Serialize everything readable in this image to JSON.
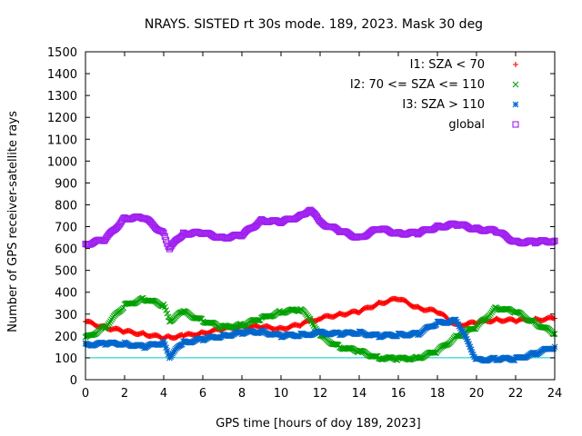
{
  "chart_data": {
    "type": "scatter",
    "title": "NRAYS. SISTED rt 30s mode. 189, 2023. Mask 30 deg",
    "xlabel": "GPS time [hours of doy 189, 2023]",
    "ylabel": "Number of GPS receiver-satellite rays",
    "xlim": [
      0,
      24
    ],
    "ylim": [
      0,
      1500
    ],
    "xticks": [
      "0",
      "2",
      "4",
      "6",
      "8",
      "10",
      "12",
      "14",
      "16",
      "18",
      "20",
      "22",
      "24"
    ],
    "yticks": [
      "0",
      "100",
      "200",
      "300",
      "400",
      "500",
      "600",
      "700",
      "800",
      "900",
      "1000",
      "1100",
      "1200",
      "1300",
      "1400",
      "1500"
    ],
    "threshold": 100,
    "legend_position": "top-right",
    "x": [
      0,
      1,
      2,
      3,
      4,
      4.3,
      5,
      6,
      7,
      8,
      9,
      10,
      11,
      11.5,
      12,
      13,
      14,
      15,
      16,
      17,
      18,
      19,
      20,
      21,
      22,
      23,
      24
    ],
    "series": [
      {
        "name": "I1: SZA < 70",
        "marker": "+",
        "color": "#ff0000",
        "values": [
          265,
          240,
          220,
          210,
          190,
          195,
          200,
          215,
          230,
          245,
          240,
          235,
          250,
          270,
          280,
          300,
          310,
          350,
          370,
          330,
          310,
          250,
          260,
          275,
          270,
          275,
          280
        ]
      },
      {
        "name": "I2: 70 <= SZA <= 110",
        "marker": "x",
        "color": "#00a000",
        "values": [
          190,
          240,
          340,
          370,
          340,
          270,
          310,
          270,
          240,
          250,
          280,
          310,
          320,
          280,
          200,
          150,
          130,
          100,
          95,
          100,
          130,
          200,
          240,
          330,
          310,
          260,
          210
        ]
      },
      {
        "name": "I3: SZA > 110",
        "marker": "*",
        "color": "#0066cc",
        "values": [
          160,
          165,
          165,
          150,
          170,
          105,
          170,
          185,
          200,
          215,
          220,
          200,
          205,
          210,
          215,
          210,
          215,
          200,
          205,
          210,
          260,
          270,
          90,
          95,
          95,
          120,
          150
        ]
      },
      {
        "name": "global",
        "marker": "square",
        "color": "#a020f0",
        "values": [
          620,
          640,
          740,
          740,
          670,
          600,
          670,
          670,
          650,
          660,
          730,
          720,
          750,
          780,
          720,
          680,
          650,
          690,
          670,
          670,
          700,
          710,
          690,
          680,
          630,
          630,
          635
        ]
      }
    ]
  }
}
